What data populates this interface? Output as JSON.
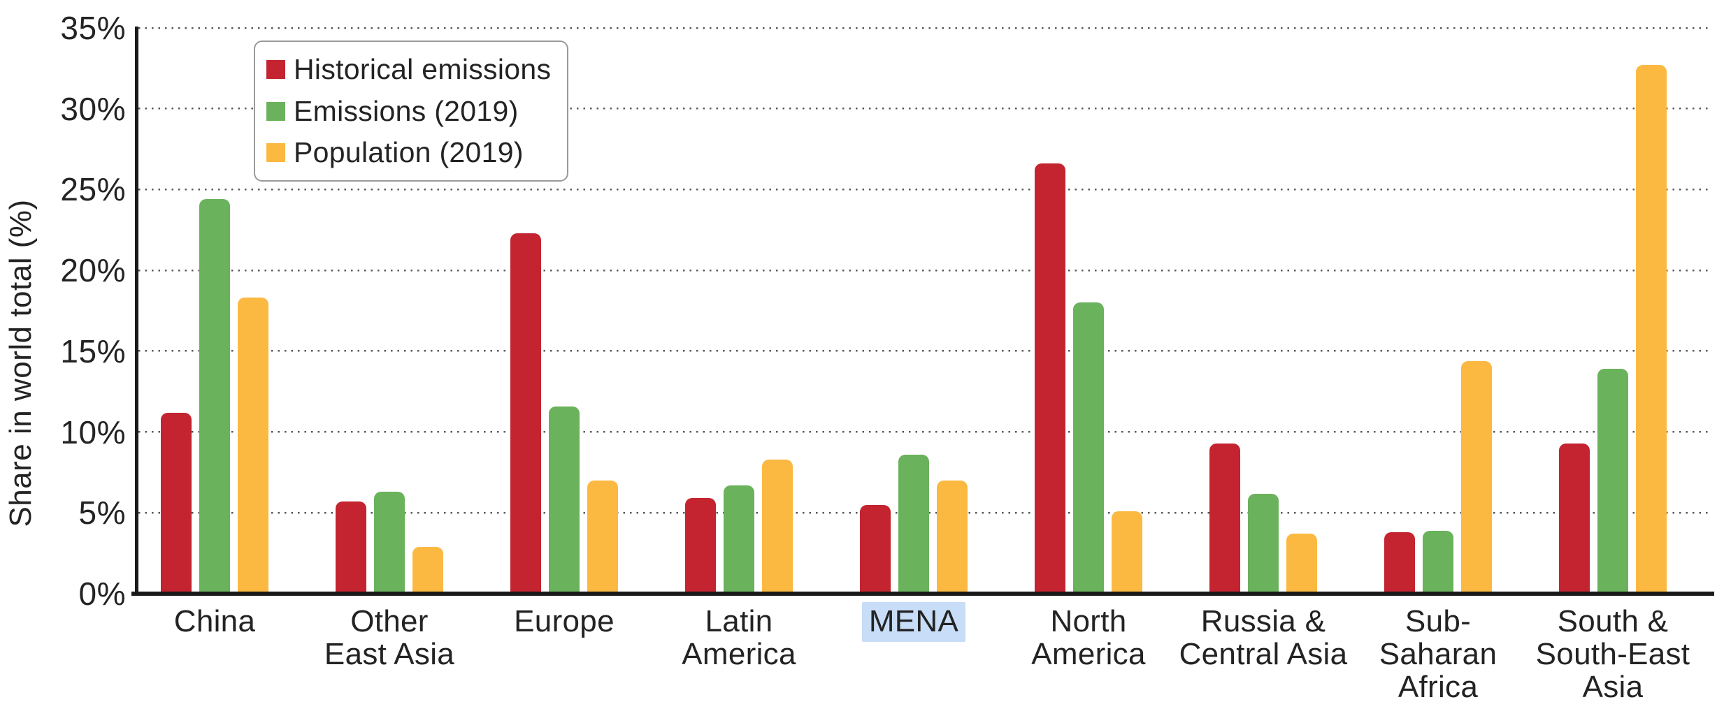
{
  "chart_data": {
    "type": "bar",
    "title": "",
    "xlabel": "",
    "ylabel": "Share in world total (%)",
    "ylim": [
      0,
      35
    ],
    "ytick_step": 5,
    "ytick_suffix": "%",
    "grid": "dotted horizontal gridlines every 5%",
    "legend_position": "top-left inside plot area",
    "categories": [
      "China",
      "Other East Asia",
      "Europe",
      "Latin America",
      "MENA",
      "North America",
      "Russia & Central Asia",
      "Sub-Saharan Africa",
      "South & South-East Asia"
    ],
    "category_label_lines": [
      [
        "China"
      ],
      [
        "Other",
        "East Asia"
      ],
      [
        "Europe"
      ],
      [
        "Latin",
        "America"
      ],
      [
        "MENA"
      ],
      [
        "North",
        "America"
      ],
      [
        "Russia &",
        "Central Asia"
      ],
      [
        "Sub-",
        "Saharan",
        "Africa"
      ],
      [
        "South &",
        "South-East",
        "Asia"
      ]
    ],
    "highlighted_category": "MENA",
    "series": [
      {
        "name": "Historical emissions",
        "color": "#c3242f",
        "values": [
          11.2,
          5.7,
          22.3,
          5.9,
          5.5,
          26.6,
          9.3,
          3.8,
          9.3
        ]
      },
      {
        "name": "Emissions (2019)",
        "color": "#6ab25c",
        "values": [
          24.4,
          6.3,
          11.6,
          6.7,
          8.6,
          18.0,
          6.2,
          3.9,
          13.9
        ]
      },
      {
        "name": "Population (2019)",
        "color": "#fbb942",
        "values": [
          18.3,
          2.9,
          7.0,
          8.3,
          7.0,
          5.1,
          3.7,
          14.4,
          32.7
        ]
      }
    ],
    "colors": {
      "highlight_background": "#c7ddf8",
      "axis_line": "#1a1a1a",
      "gridline_dots": "#3d3d3d",
      "legend_border": "#9a9a9a",
      "text": "#232323",
      "background": "#ffffff"
    }
  }
}
